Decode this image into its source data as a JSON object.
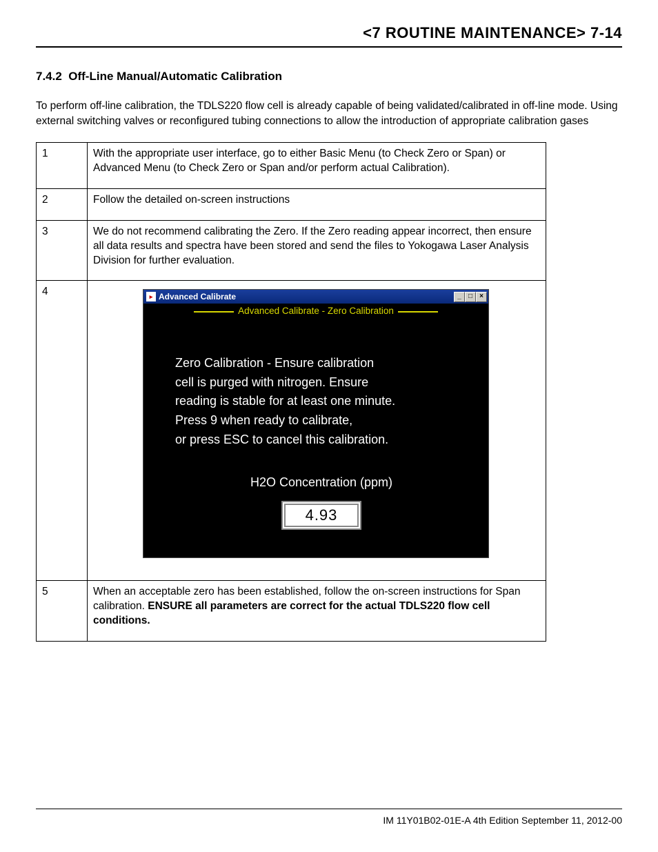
{
  "header": {
    "title": "<7 ROUTINE MAINTENANCE>  7-14"
  },
  "section": {
    "number": "7.4.2",
    "title": "Off-Line Manual/Automatic Calibration",
    "intro": "To perform off-line calibration, the TDLS220 flow cell is already capable of being validated/calibrated in off-line mode. Using external switching valves or reconfigured tubing connections to allow the introduction of appropriate calibration gases"
  },
  "steps": {
    "rows": [
      {
        "n": "1",
        "text": "With the appropriate user interface, go to either Basic Menu (to Check Zero or Span) or Advanced Menu (to Check Zero or Span and/or perform actual Calibration)."
      },
      {
        "n": "2",
        "text": "Follow the detailed on-screen instructions"
      },
      {
        "n": "3",
        "text": "We do not recommend calibrating the Zero. If the Zero reading appear incorrect, then ensure all data results and spectra have been stored and send the files to Yokogawa Laser Analysis Division for further evaluation."
      },
      {
        "n": "4",
        "text": ""
      },
      {
        "n": "5",
        "text_pre": "When an acceptable zero has been established, follow the on-screen instructions for Span calibration. ",
        "text_bold": "ENSURE all parameters are correct for the actual TDLS220 flow cell conditions."
      }
    ]
  },
  "window": {
    "title": "Advanced Calibrate",
    "subtitle": "Advanced Calibrate - Zero Calibration",
    "body_l1": "Zero Calibration - Ensure calibration",
    "body_l2": "cell is purged with nitrogen. Ensure",
    "body_l3": "reading is stable for at least one minute.",
    "body_l4": "Press 9 when ready to calibrate,",
    "body_l5": "or press ESC to cancel this calibration.",
    "h2o_label": "H2O Concentration (ppm)",
    "h2o_value": "4.93",
    "colors": {
      "titlebar_bg": "#0a2a7a",
      "subtitle_fg": "#d9d900",
      "panel_bg": "#000000",
      "panel_fg": "#ffffff",
      "value_bg": "#ffffff",
      "value_fg": "#000000"
    }
  },
  "footer": {
    "text": "IM 11Y01B02-01E-A  4th Edition September 11, 2012-00"
  }
}
